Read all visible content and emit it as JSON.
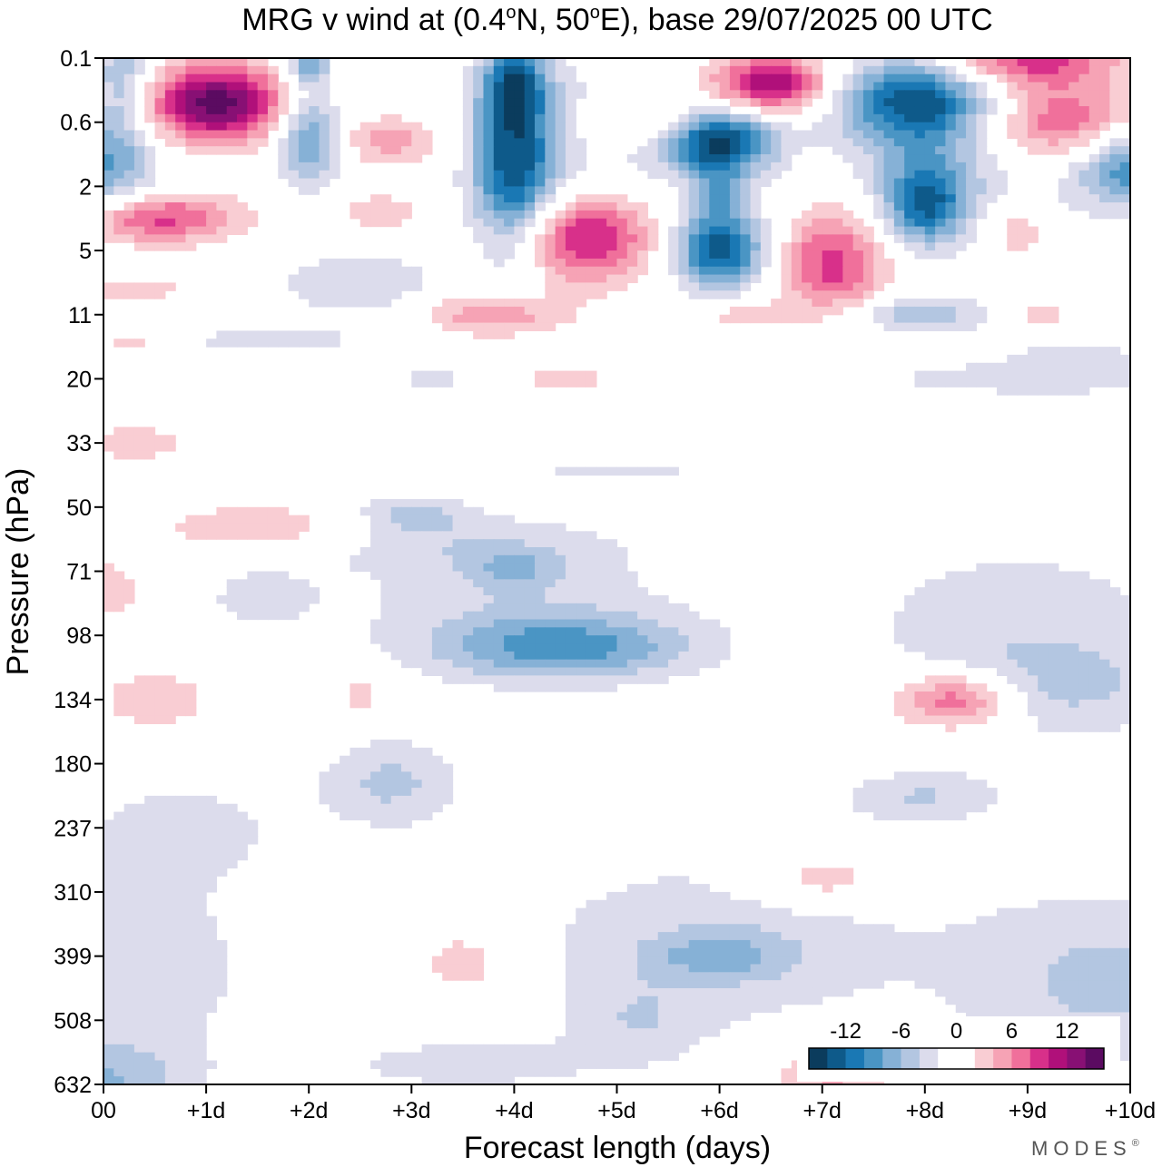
{
  "chart_data": {
    "type": "heatmap",
    "title_prefix": "MRG v wind at (0.4",
    "title_deg1": "o",
    "title_mid": "N, 50",
    "title_deg2": "o",
    "title_suffix": "E),  base 29/07/2025  00 UTC",
    "xlabel": "Forecast length (days)",
    "ylabel": "Pressure (hPa)",
    "x_ticks": [
      "00",
      "+1d",
      "+2d",
      "+3d",
      "+4d",
      "+5d",
      "+6d",
      "+7d",
      "+8d",
      "+9d",
      "+10d"
    ],
    "y_ticks": [
      "0.1",
      "0.6",
      "2",
      "5",
      "11",
      "20",
      "33",
      "50",
      "71",
      "98",
      "134",
      "180",
      "237",
      "310",
      "399",
      "508",
      "632"
    ],
    "xlim_days": [
      0,
      10
    ],
    "colorbar": {
      "levels": [
        -14,
        -12,
        -10,
        -8,
        -6,
        -4,
        -2,
        0,
        2,
        4,
        6,
        8,
        10,
        12,
        14
      ],
      "labels": [
        "-12",
        "-6",
        "0",
        "6",
        "12"
      ],
      "label_values": [
        -12,
        -6,
        0,
        6,
        12
      ],
      "colors": [
        "#0b3c5d",
        "#0e5a8a",
        "#1a78b4",
        "#4a95c4",
        "#86b1d6",
        "#b3c6e1",
        "#dcdcec",
        "#ffffff",
        "#ffffff",
        "#f9cdd3",
        "#f6a3b5",
        "#f0709b",
        "#d8308a",
        "#b0107a",
        "#881074",
        "#5b0b61"
      ]
    },
    "features": [
      {
        "name": "neg-large-lower",
        "x": 0.0,
        "lev": 14.2,
        "rx": 1.6,
        "rl": 1.8,
        "v": -3.5
      },
      {
        "name": "neg-lower-mid",
        "x": 6.0,
        "lev": 13.8,
        "rx": 2.2,
        "rl": 1.6,
        "v": -3.2
      },
      {
        "name": "neg-lower-right",
        "x": 9.8,
        "lev": 14.4,
        "rx": 1.4,
        "rl": 1.4,
        "v": -4.5
      },
      {
        "name": "neg-deep-left",
        "x": 0.0,
        "lev": 16.0,
        "rx": 0.8,
        "rl": 0.6,
        "v": -5.0
      },
      {
        "name": "neg-mid-180",
        "x": 2.8,
        "lev": 11.3,
        "rx": 0.7,
        "rl": 0.7,
        "v": -4.5
      },
      {
        "name": "neg-180-left",
        "x": 0.8,
        "lev": 12.0,
        "rx": 1.0,
        "rl": 0.8,
        "v": -2.5
      },
      {
        "name": "neg-98-core",
        "x": 4.5,
        "lev": 9.2,
        "rx": 1.2,
        "rl": 0.5,
        "v": -8.0
      },
      {
        "name": "neg-98-broad",
        "x": 4.0,
        "lev": 8.5,
        "rx": 1.8,
        "rl": 1.1,
        "v": -3.0
      },
      {
        "name": "neg-134-right",
        "x": 9.2,
        "lev": 9.8,
        "rx": 1.4,
        "rl": 0.8,
        "v": -4.5
      },
      {
        "name": "neg-71-right",
        "x": 8.9,
        "lev": 8.5,
        "rx": 1.8,
        "rl": 1.1,
        "v": -2.7
      },
      {
        "name": "neg-180-right",
        "x": 8.0,
        "lev": 11.5,
        "rx": 0.8,
        "rl": 0.4,
        "v": -4.0
      },
      {
        "name": "neg-399",
        "x": 6.0,
        "lev": 14.0,
        "rx": 0.7,
        "rl": 0.4,
        "v": -4.5
      },
      {
        "name": "pos-134",
        "x": 8.3,
        "lev": 10.0,
        "rx": 0.6,
        "rl": 0.45,
        "v": 9.5
      },
      {
        "name": "pos-310",
        "x": 7.0,
        "lev": 12.8,
        "rx": 0.7,
        "rl": 0.4,
        "v": 4.5
      },
      {
        "name": "pos-399",
        "x": 3.5,
        "lev": 14.1,
        "rx": 0.4,
        "rl": 0.45,
        "v": 4.5
      },
      {
        "name": "pos-632",
        "x": 7.1,
        "lev": 15.8,
        "rx": 0.6,
        "rl": 0.5,
        "v": 5.0
      },
      {
        "name": "pos-134-left",
        "x": 0.5,
        "lev": 10.0,
        "rx": 0.5,
        "rl": 0.45,
        "v": 4.0
      },
      {
        "name": "pos-50-left",
        "x": 1.5,
        "lev": 7.3,
        "rx": 1.0,
        "rl": 0.35,
        "v": 4.0
      },
      {
        "name": "pos-71-left",
        "x": 0.0,
        "lev": 8.3,
        "rx": 0.4,
        "rl": 0.5,
        "v": 3.5
      },
      {
        "name": "pos-33-left",
        "x": 0.3,
        "lev": 6.0,
        "rx": 0.6,
        "rl": 0.3,
        "v": 3.5
      },
      {
        "name": "pos-134-mini",
        "x": 2.5,
        "lev": 9.9,
        "rx": 0.2,
        "rl": 0.3,
        "v": 3.5
      },
      {
        "name": "pos-top-1d",
        "x": 1.1,
        "lev": 0.7,
        "rx": 0.7,
        "rl": 0.6,
        "v": 15.0
      },
      {
        "name": "pos-top-6-5d",
        "x": 6.5,
        "lev": 0.4,
        "rx": 0.6,
        "rl": 0.45,
        "v": 13.0
      },
      {
        "name": "pos-top-9d",
        "x": 9.0,
        "lev": 0.0,
        "rx": 0.9,
        "rl": 0.5,
        "v": 10.0
      },
      {
        "name": "pos-top-9d-b",
        "x": 9.3,
        "lev": 1.0,
        "rx": 0.8,
        "rl": 0.6,
        "v": 9.0
      },
      {
        "name": "pos-3-5",
        "x": 0.5,
        "lev": 2.5,
        "rx": 0.8,
        "rl": 0.4,
        "v": 9.0
      },
      {
        "name": "pos-5d",
        "x": 4.7,
        "lev": 2.8,
        "rx": 0.7,
        "rl": 0.7,
        "v": 11.0
      },
      {
        "name": "pos-7d",
        "x": 7.1,
        "lev": 3.2,
        "rx": 0.55,
        "rl": 0.9,
        "v": 9.0
      },
      {
        "name": "pos-11-4d",
        "x": 3.8,
        "lev": 4.0,
        "rx": 0.7,
        "rl": 0.35,
        "v": 6.0
      },
      {
        "name": "pos-5-2",
        "x": 5.3,
        "lev": 1.0,
        "rx": 0.6,
        "rl": 0.4,
        "v": 4.5
      },
      {
        "name": "pos-3d-top",
        "x": 2.8,
        "lev": 1.3,
        "rx": 0.5,
        "rl": 0.4,
        "v": 5.0
      },
      {
        "name": "pos-9-5d",
        "x": 8.9,
        "lev": 2.7,
        "rx": 0.3,
        "rl": 0.4,
        "v": 4.5
      },
      {
        "name": "pos-20-5d",
        "x": 4.5,
        "lev": 5.0,
        "rx": 0.4,
        "rl": 0.2,
        "v": 4.0
      },
      {
        "name": "pos-11-8d",
        "x": 9.1,
        "lev": 4.0,
        "rx": 0.4,
        "rl": 0.2,
        "v": 4.0
      },
      {
        "name": "pos-11-7d",
        "x": 6.2,
        "lev": 4.0,
        "rx": 0.4,
        "rl": 0.2,
        "v": 3.5
      },
      {
        "name": "pos-left-8",
        "x": 0.3,
        "lev": 3.6,
        "rx": 0.5,
        "rl": 0.2,
        "v": 3.5
      },
      {
        "name": "pos-left-14",
        "x": 0.3,
        "lev": 4.4,
        "rx": 0.4,
        "rl": 0.2,
        "v": 3.5
      },
      {
        "name": "pos-3d-5",
        "x": 2.7,
        "lev": 2.4,
        "rx": 0.4,
        "rl": 0.3,
        "v": 3.5
      },
      {
        "name": "neg-top-left",
        "x": 0.2,
        "lev": 0.3,
        "rx": 0.3,
        "rl": 0.9,
        "v": -6.0
      },
      {
        "name": "neg-left-1",
        "x": 0.0,
        "lev": 1.7,
        "rx": 0.5,
        "rl": 0.8,
        "v": -8.0
      },
      {
        "name": "neg-2d",
        "x": 2.0,
        "lev": 1.2,
        "rx": 0.3,
        "rl": 0.8,
        "v": -9.0
      },
      {
        "name": "neg-2d-top",
        "x": 2.0,
        "lev": 0.1,
        "rx": 0.2,
        "rl": 0.3,
        "v": -7.0
      },
      {
        "name": "neg-4d",
        "x": 4.0,
        "lev": 1.7,
        "rx": 0.4,
        "rl": 1.4,
        "v": -13.0
      },
      {
        "name": "neg-4d-top",
        "x": 4.0,
        "lev": 0.4,
        "rx": 0.3,
        "rl": 0.6,
        "v": -9.0
      },
      {
        "name": "neg-6d-1",
        "x": 6.0,
        "lev": 1.3,
        "rx": 0.5,
        "rl": 0.5,
        "v": -14.0
      },
      {
        "name": "neg-6d-5",
        "x": 6.0,
        "lev": 3.0,
        "rx": 0.45,
        "rl": 0.6,
        "v": -13.0
      },
      {
        "name": "neg-6d-stem",
        "x": 6.0,
        "lev": 2.1,
        "rx": 0.25,
        "rl": 0.5,
        "v": -5.0
      },
      {
        "name": "neg-8d-top",
        "x": 7.9,
        "lev": 0.6,
        "rx": 0.8,
        "rl": 0.6,
        "v": -11.0
      },
      {
        "name": "neg-8d-2",
        "x": 8.0,
        "lev": 2.3,
        "rx": 0.4,
        "rl": 0.6,
        "v": -11.0
      },
      {
        "name": "neg-8d-stem",
        "x": 8.0,
        "lev": 1.3,
        "rx": 0.6,
        "rl": 0.8,
        "v": -4.0
      },
      {
        "name": "neg-10d",
        "x": 10.0,
        "lev": 1.7,
        "rx": 0.5,
        "rl": 0.6,
        "v": -9.0
      },
      {
        "name": "neg-11-8d",
        "x": 7.9,
        "lev": 4.0,
        "rx": 0.8,
        "rl": 0.3,
        "v": -5.5
      },
      {
        "name": "neg-7-2d",
        "x": 2.5,
        "lev": 3.5,
        "rx": 0.8,
        "rl": 0.5,
        "v": -4.0
      },
      {
        "name": "neg-11-wide",
        "x": 1.6,
        "lev": 4.4,
        "rx": 1.4,
        "rl": 0.3,
        "v": -2.5
      },
      {
        "name": "neg-mid-top",
        "x": 5.0,
        "lev": 1.2,
        "rx": 1.2,
        "rl": 1.5,
        "v": -2.5
      },
      {
        "name": "neg-top-right",
        "x": 8.5,
        "lev": 1.5,
        "rx": 1.5,
        "rl": 1.5,
        "v": -2.5
      },
      {
        "name": "neg-20-band",
        "x": 8.5,
        "lev": 5.0,
        "rx": 1.5,
        "rl": 0.3,
        "v": -2.5
      },
      {
        "name": "neg-20-3d",
        "x": 3.2,
        "lev": 5.0,
        "rx": 0.5,
        "rl": 0.2,
        "v": -2.5
      },
      {
        "name": "neg-50-3d",
        "x": 3.0,
        "lev": 7.1,
        "rx": 0.6,
        "rl": 0.3,
        "v": -4.0
      },
      {
        "name": "neg-71-4d",
        "x": 4.0,
        "lev": 8.0,
        "rx": 0.4,
        "rl": 0.3,
        "v": -4.0
      },
      {
        "name": "neg-50-band",
        "x": 3.5,
        "lev": 7.6,
        "rx": 1.5,
        "rl": 0.45,
        "v": -2.5
      },
      {
        "name": "neg-33-band",
        "x": 5.0,
        "lev": 6.4,
        "rx": 1.3,
        "rl": 0.15,
        "v": -2.5
      },
      {
        "name": "neg-71-bump",
        "x": 1.5,
        "lev": 8.4,
        "rx": 0.6,
        "rl": 0.5,
        "v": -2.5
      },
      {
        "name": "neg-right-top",
        "x": 9.5,
        "lev": 4.7,
        "rx": 0.8,
        "rl": 0.5,
        "v": -2.5
      },
      {
        "name": "neg-lower-center",
        "x": 3.5,
        "lev": 15.7,
        "rx": 1.5,
        "rl": 0.5,
        "v": -2.5
      },
      {
        "name": "neg-lower-mid2",
        "x": 5.2,
        "lev": 15.0,
        "rx": 0.6,
        "rl": 0.6,
        "v": -2.5
      }
    ]
  },
  "brand": {
    "name": "MODES",
    "mark": "®"
  }
}
